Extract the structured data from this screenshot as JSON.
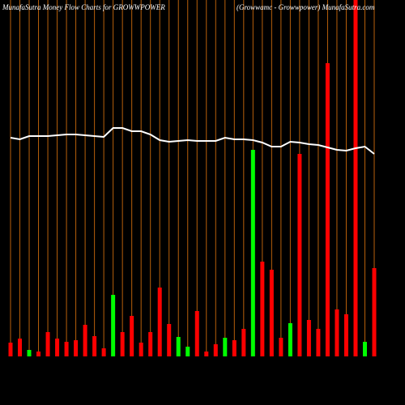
{
  "chart_data": {
    "type": "bar",
    "title": "MunafaSutra  Money Flow  Charts for GROWWPOWER",
    "subtitle": "(Growwamc - Growwpower) MunafaSutra.com",
    "values": [
      17,
      22,
      8,
      6,
      30,
      22,
      18,
      20,
      39,
      25,
      10,
      76,
      30,
      50,
      17,
      30,
      85,
      40,
      24,
      12,
      56,
      6,
      15,
      23,
      20,
      34,
      255,
      117,
      107,
      23,
      41,
      250,
      45,
      34,
      362,
      58,
      52,
      440,
      18,
      109
    ],
    "colors": [
      "#ff0000",
      "#ff0000",
      "#00ff00",
      "#ff0000",
      "#ff0000",
      "#ff0000",
      "#ff0000",
      "#ff0000",
      "#ff0000",
      "#ff0000",
      "#ff0000",
      "#00ff00",
      "#ff0000",
      "#ff0000",
      "#ff0000",
      "#ff0000",
      "#ff0000",
      "#ff0000",
      "#00ff00",
      "#00ff00",
      "#ff0000",
      "#ff0000",
      "#ff0000",
      "#00ff00",
      "#ff0000",
      "#ff0000",
      "#00ff00",
      "#ff0000",
      "#ff0000",
      "#ff0000",
      "#00ff00",
      "#ff0000",
      "#ff0000",
      "#ff0000",
      "#ff0000",
      "#ff0000",
      "#ff0000",
      "#ff0000",
      "#00ff00",
      "#ff0000"
    ],
    "line_values": [
      270,
      268,
      272,
      272,
      272,
      273,
      274,
      274,
      273,
      272,
      271,
      282,
      282,
      278,
      278,
      274,
      267,
      265,
      266,
      267,
      266,
      266,
      266,
      270,
      268,
      268,
      267,
      264,
      259,
      259,
      265,
      264,
      262,
      261,
      258,
      255,
      254,
      257,
      259,
      250
    ],
    "line_color": "#ffffff",
    "grid_color": "#b8600b",
    "ylim": [
      0,
      440
    ],
    "grid": true
  }
}
